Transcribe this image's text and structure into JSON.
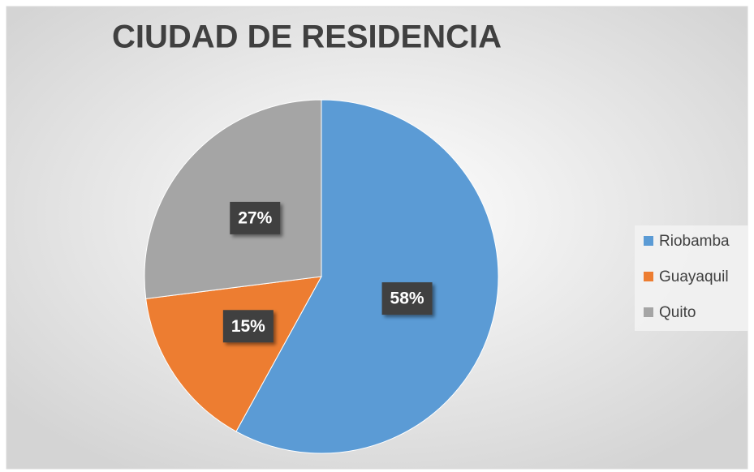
{
  "chart_data": {
    "type": "pie",
    "title": "CIUDAD DE RESIDENCIA",
    "categories": [
      "Riobamba",
      "Guayaquil",
      "Quito"
    ],
    "values": [
      58,
      15,
      27
    ],
    "value_labels": [
      "58%",
      "15%",
      "27%"
    ],
    "colors": [
      "#5b9bd5",
      "#ed7d31",
      "#a5a5a5"
    ],
    "legend": "right"
  }
}
